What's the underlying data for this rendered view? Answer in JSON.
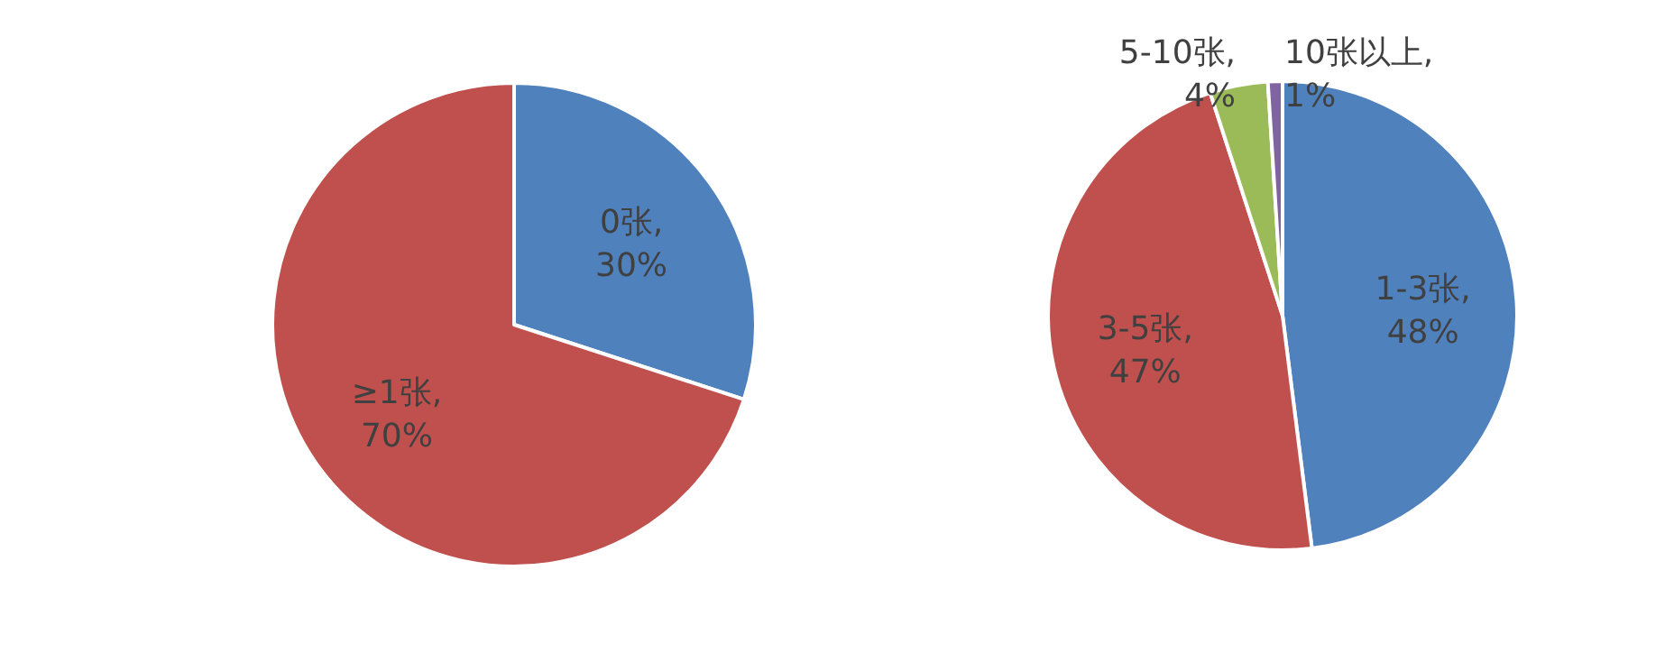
{
  "chart_data": [
    {
      "type": "pie",
      "categories": [
        "0张",
        "≥1张"
      ],
      "values": [
        30,
        70
      ],
      "colors": [
        "#4f81bd",
        "#c0504d"
      ],
      "value_labels": [
        ", 30%",
        ", 70%"
      ]
    },
    {
      "type": "pie",
      "categories": [
        "1-3张",
        "3-5张",
        "5-10张",
        "10张以上"
      ],
      "values": [
        48,
        47,
        4,
        1
      ],
      "colors": [
        "#4f81bd",
        "#c0504d",
        "#9bbb59",
        "#8064a2"
      ],
      "value_labels": [
        ", 48%",
        ", 47%",
        ", 4%",
        ", 1%"
      ]
    }
  ]
}
